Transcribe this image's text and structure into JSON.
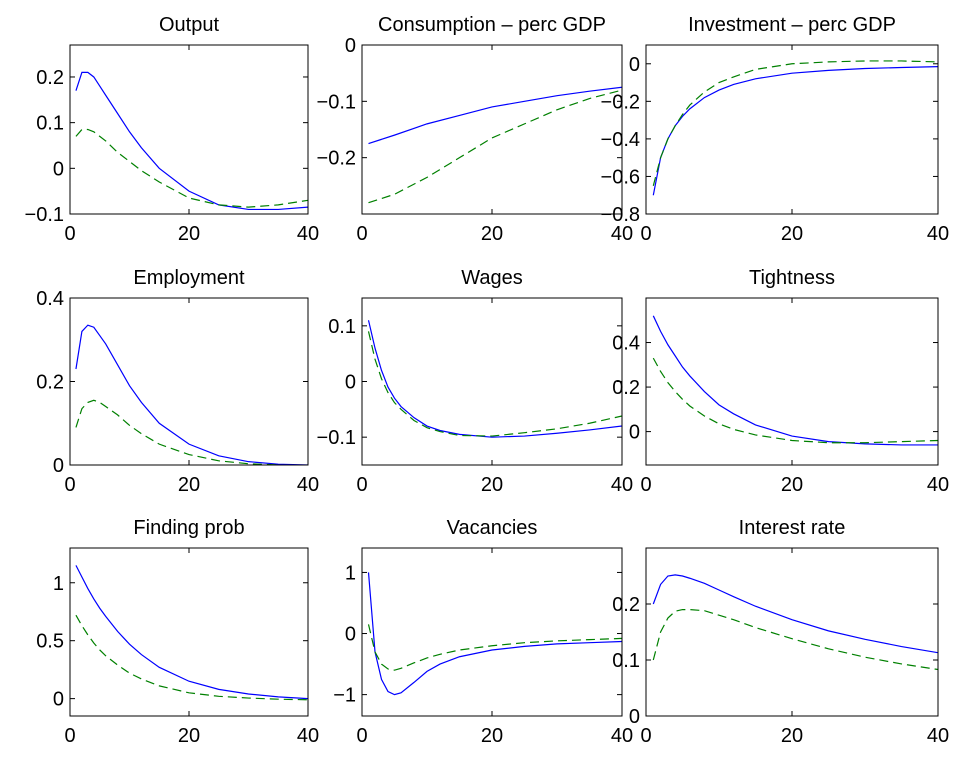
{
  "chart_data": [
    {
      "type": "line",
      "title": "Output",
      "x": [
        1,
        2,
        3,
        4,
        5,
        6,
        8,
        10,
        12,
        15,
        20,
        25,
        30,
        35,
        40
      ],
      "series": [
        {
          "color": "#0000ff",
          "style": "solid",
          "values": [
            0.17,
            0.21,
            0.21,
            0.2,
            0.18,
            0.16,
            0.12,
            0.08,
            0.045,
            0.0,
            -0.05,
            -0.08,
            -0.09,
            -0.09,
            -0.085
          ]
        },
        {
          "color": "#008000",
          "style": "dashed",
          "values": [
            0.07,
            0.085,
            0.085,
            0.08,
            0.07,
            0.06,
            0.035,
            0.015,
            -0.005,
            -0.03,
            -0.065,
            -0.08,
            -0.085,
            -0.08,
            -0.07
          ]
        }
      ],
      "xlim": [
        0,
        40
      ],
      "xticks": [
        0,
        20,
        40
      ],
      "ylim": [
        -0.1,
        0.27
      ],
      "yticks": [
        -0.1,
        0,
        0.1,
        0.2
      ]
    },
    {
      "type": "line",
      "title": "Consumption – perc GDP",
      "x": [
        1,
        5,
        10,
        15,
        20,
        25,
        30,
        35,
        40
      ],
      "series": [
        {
          "color": "#0000ff",
          "style": "solid",
          "values": [
            -0.175,
            -0.16,
            -0.14,
            -0.125,
            -0.11,
            -0.1,
            -0.09,
            -0.082,
            -0.075
          ]
        },
        {
          "color": "#008000",
          "style": "dashed",
          "values": [
            -0.28,
            -0.265,
            -0.235,
            -0.2,
            -0.165,
            -0.14,
            -0.115,
            -0.095,
            -0.08
          ]
        }
      ],
      "xlim": [
        0,
        40
      ],
      "xticks": [
        0,
        20,
        40
      ],
      "ylim": [
        -0.3,
        0
      ],
      "yticks": [
        -0.2,
        -0.1,
        0
      ]
    },
    {
      "type": "line",
      "title": "Investment – perc GDP",
      "x": [
        1,
        2,
        3,
        4,
        5,
        6,
        8,
        10,
        12,
        15,
        20,
        25,
        30,
        35,
        40
      ],
      "series": [
        {
          "color": "#0000ff",
          "style": "solid",
          "values": [
            -0.7,
            -0.5,
            -0.4,
            -0.33,
            -0.28,
            -0.24,
            -0.18,
            -0.14,
            -0.11,
            -0.08,
            -0.05,
            -0.035,
            -0.025,
            -0.02,
            -0.015
          ]
        },
        {
          "color": "#008000",
          "style": "dashed",
          "values": [
            -0.65,
            -0.5,
            -0.4,
            -0.33,
            -0.27,
            -0.22,
            -0.15,
            -0.1,
            -0.07,
            -0.03,
            0.0,
            0.01,
            0.015,
            0.015,
            0.01
          ]
        }
      ],
      "xlim": [
        0,
        40
      ],
      "xticks": [
        0,
        20,
        40
      ],
      "ylim": [
        -0.8,
        0.1
      ],
      "yticks": [
        -0.8,
        -0.6,
        -0.4,
        -0.2,
        0
      ]
    },
    {
      "type": "line",
      "title": "Employment",
      "x": [
        1,
        2,
        3,
        4,
        5,
        6,
        8,
        10,
        12,
        15,
        20,
        25,
        30,
        35,
        40
      ],
      "series": [
        {
          "color": "#0000ff",
          "style": "solid",
          "values": [
            0.23,
            0.32,
            0.335,
            0.33,
            0.31,
            0.29,
            0.24,
            0.19,
            0.15,
            0.1,
            0.05,
            0.022,
            0.008,
            0.002,
            0
          ]
        },
        {
          "color": "#008000",
          "style": "dashed",
          "values": [
            0.09,
            0.135,
            0.15,
            0.155,
            0.15,
            0.14,
            0.12,
            0.095,
            0.075,
            0.05,
            0.025,
            0.01,
            0.003,
            0.0,
            -0.002
          ]
        }
      ],
      "xlim": [
        0,
        40
      ],
      "xticks": [
        0,
        20,
        40
      ],
      "ylim": [
        0,
        0.4
      ],
      "yticks": [
        0,
        0.2,
        0.4
      ]
    },
    {
      "type": "line",
      "title": "Wages",
      "x": [
        1,
        2,
        3,
        4,
        5,
        6,
        8,
        10,
        12,
        15,
        20,
        25,
        30,
        35,
        40
      ],
      "series": [
        {
          "color": "#0000ff",
          "style": "solid",
          "values": [
            0.11,
            0.06,
            0.02,
            -0.01,
            -0.03,
            -0.045,
            -0.065,
            -0.08,
            -0.088,
            -0.095,
            -0.1,
            -0.098,
            -0.093,
            -0.087,
            -0.08
          ]
        },
        {
          "color": "#008000",
          "style": "dashed",
          "values": [
            0.09,
            0.04,
            0.005,
            -0.02,
            -0.038,
            -0.05,
            -0.07,
            -0.083,
            -0.09,
            -0.097,
            -0.098,
            -0.092,
            -0.085,
            -0.075,
            -0.062
          ]
        }
      ],
      "xlim": [
        0,
        40
      ],
      "xticks": [
        0,
        20,
        40
      ],
      "ylim": [
        -0.15,
        0.15
      ],
      "yticks": [
        -0.1,
        0,
        0.1
      ]
    },
    {
      "type": "line",
      "title": "Tightness",
      "x": [
        1,
        2,
        3,
        4,
        5,
        6,
        8,
        10,
        12,
        15,
        20,
        25,
        30,
        35,
        40
      ],
      "series": [
        {
          "color": "#0000ff",
          "style": "solid",
          "values": [
            0.52,
            0.45,
            0.39,
            0.34,
            0.29,
            0.25,
            0.18,
            0.12,
            0.08,
            0.03,
            -0.02,
            -0.045,
            -0.055,
            -0.06,
            -0.06
          ]
        },
        {
          "color": "#008000",
          "style": "dashed",
          "values": [
            0.33,
            0.27,
            0.22,
            0.18,
            0.145,
            0.115,
            0.07,
            0.035,
            0.01,
            -0.015,
            -0.04,
            -0.05,
            -0.05,
            -0.045,
            -0.04
          ]
        }
      ],
      "xlim": [
        0,
        40
      ],
      "xticks": [
        0,
        20,
        40
      ],
      "ylim": [
        -0.15,
        0.6
      ],
      "yticks": [
        0,
        0.2,
        0.4
      ]
    },
    {
      "type": "line",
      "title": "Finding prob",
      "x": [
        1,
        2,
        3,
        4,
        5,
        6,
        8,
        10,
        12,
        15,
        20,
        25,
        30,
        35,
        40
      ],
      "series": [
        {
          "color": "#0000ff",
          "style": "solid",
          "values": [
            1.15,
            1.05,
            0.95,
            0.86,
            0.78,
            0.71,
            0.58,
            0.47,
            0.38,
            0.27,
            0.15,
            0.08,
            0.04,
            0.015,
            0.0
          ]
        },
        {
          "color": "#008000",
          "style": "dashed",
          "values": [
            0.72,
            0.63,
            0.55,
            0.48,
            0.42,
            0.37,
            0.29,
            0.22,
            0.17,
            0.11,
            0.05,
            0.02,
            0.005,
            -0.005,
            -0.01
          ]
        }
      ],
      "xlim": [
        0,
        40
      ],
      "xticks": [
        0,
        20,
        40
      ],
      "ylim": [
        -0.15,
        1.3
      ],
      "yticks": [
        0,
        0.5,
        1
      ]
    },
    {
      "type": "line",
      "title": "Vacancies",
      "x": [
        1,
        2,
        3,
        4,
        5,
        6,
        8,
        10,
        12,
        15,
        20,
        25,
        30,
        35,
        40
      ],
      "series": [
        {
          "color": "#0000ff",
          "style": "solid",
          "values": [
            1.0,
            -0.3,
            -0.75,
            -0.95,
            -1.0,
            -0.97,
            -0.8,
            -0.62,
            -0.5,
            -0.38,
            -0.27,
            -0.21,
            -0.17,
            -0.15,
            -0.13
          ]
        },
        {
          "color": "#008000",
          "style": "dashed",
          "values": [
            0.15,
            -0.3,
            -0.5,
            -0.58,
            -0.6,
            -0.57,
            -0.48,
            -0.4,
            -0.34,
            -0.27,
            -0.2,
            -0.15,
            -0.12,
            -0.1,
            -0.08
          ]
        }
      ],
      "xlim": [
        0,
        40
      ],
      "xticks": [
        0,
        20,
        40
      ],
      "ylim": [
        -1.35,
        1.4
      ],
      "yticks": [
        -1,
        0,
        1
      ]
    },
    {
      "type": "line",
      "title": "Interest rate",
      "x": [
        1,
        2,
        3,
        4,
        5,
        6,
        8,
        10,
        12,
        15,
        20,
        25,
        30,
        35,
        40
      ],
      "series": [
        {
          "color": "#0000ff",
          "style": "solid",
          "values": [
            0.2,
            0.235,
            0.25,
            0.252,
            0.25,
            0.246,
            0.237,
            0.225,
            0.213,
            0.196,
            0.172,
            0.152,
            0.137,
            0.124,
            0.113
          ]
        },
        {
          "color": "#008000",
          "style": "dashed",
          "values": [
            0.1,
            0.15,
            0.175,
            0.187,
            0.19,
            0.19,
            0.188,
            0.18,
            0.172,
            0.158,
            0.138,
            0.12,
            0.105,
            0.093,
            0.083
          ]
        }
      ],
      "xlim": [
        0,
        40
      ],
      "xticks": [
        0,
        20,
        40
      ],
      "ylim": [
        0,
        0.3
      ],
      "yticks": [
        0,
        0.1,
        0.2
      ]
    }
  ]
}
